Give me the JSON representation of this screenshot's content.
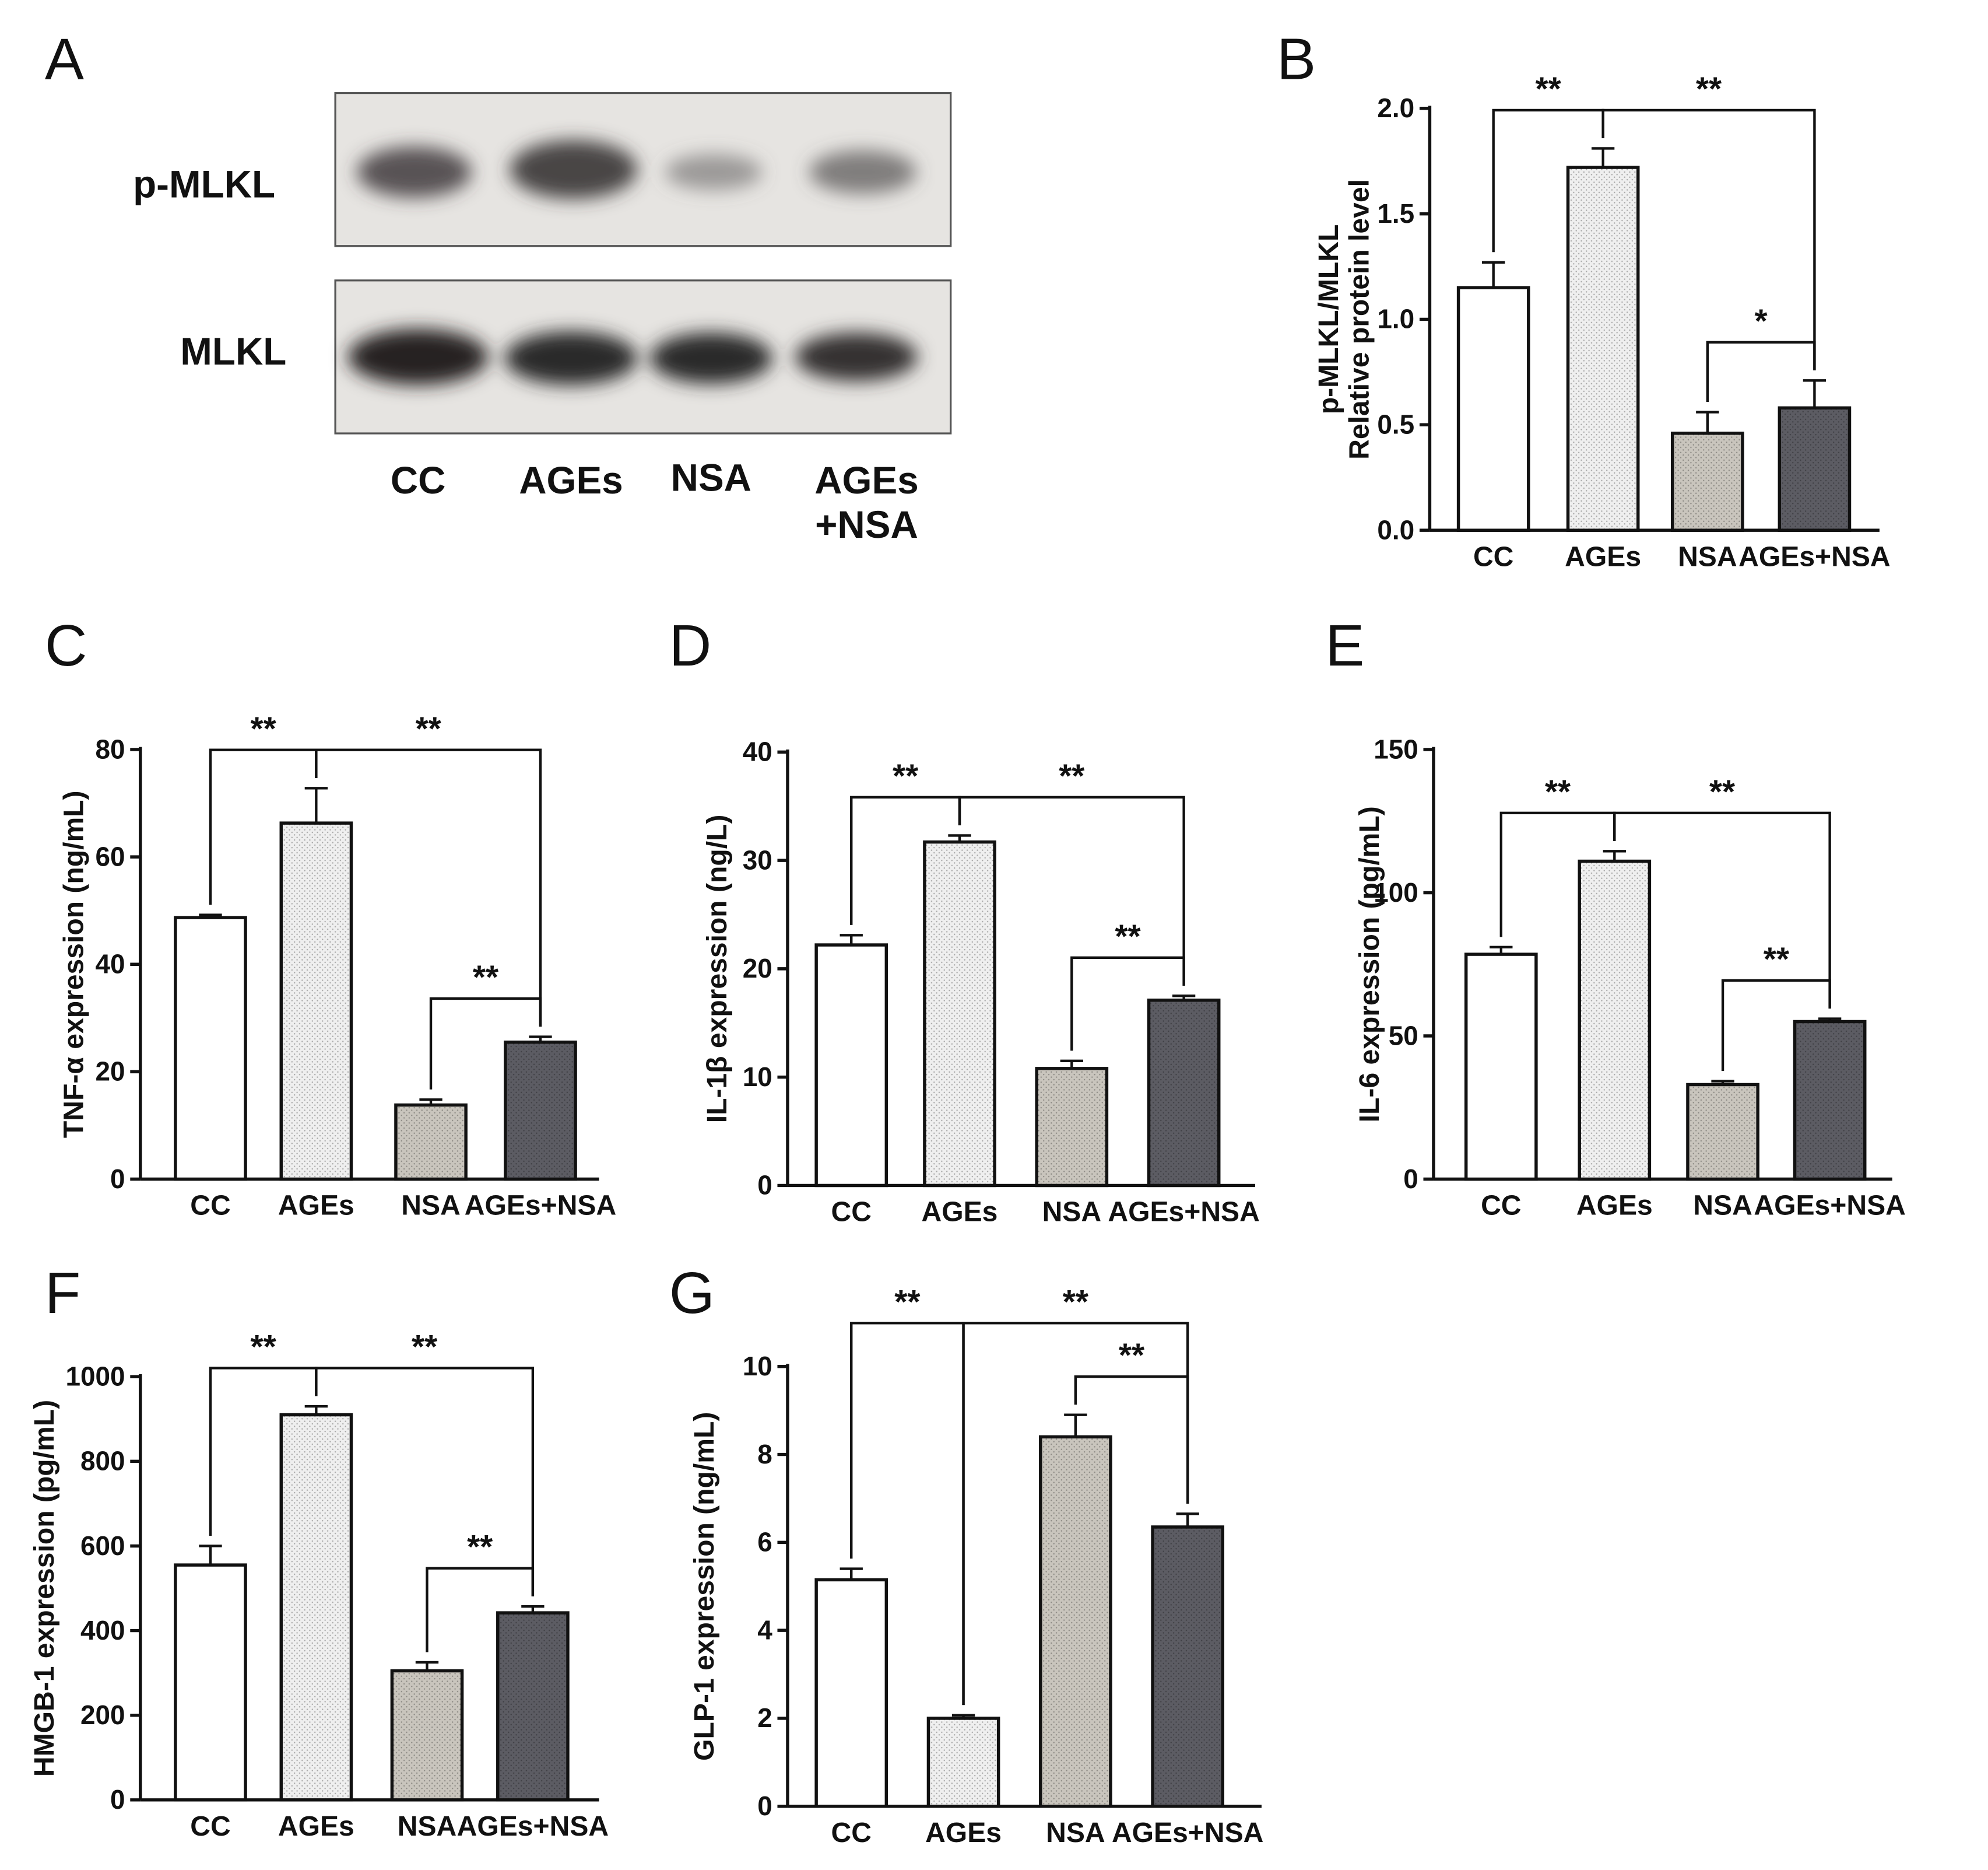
{
  "blot": {
    "label": "A",
    "rows": [
      "p-MLKL",
      "MLKL"
    ],
    "lanes": [
      [
        "CC"
      ],
      [
        "AGEs"
      ],
      [
        "NSA"
      ],
      [
        "AGEs",
        "+NSA"
      ]
    ]
  },
  "chart_data": [
    {
      "type": "bar",
      "label": "B",
      "y_label": [
        "p-MLKL/MLKL",
        "Relative protein level"
      ],
      "categories": [
        "CC",
        "AGEs",
        "NSA",
        "AGEs+NSA"
      ],
      "values": [
        1.15,
        1.72,
        0.46,
        0.58
      ],
      "errors": [
        0.12,
        0.09,
        0.1,
        0.13
      ],
      "colors": [
        "#ffffff",
        "#efefef",
        "#c9c5bd",
        "#5c5c63"
      ],
      "ylim": [
        0,
        2
      ],
      "yticks": [
        {
          "value": 0,
          "label": "0.0"
        },
        0.5,
        {
          "value": 1,
          "label": "1.0"
        },
        1.5,
        {
          "value": 2,
          "label": "2.0"
        }
      ],
      "significance": [
        {
          "from": 0,
          "to": 1,
          "label": "**"
        },
        {
          "from": 1,
          "to": 3,
          "label": "**"
        },
        {
          "from": 2,
          "to": 3,
          "label": "*"
        }
      ]
    },
    {
      "type": "bar",
      "label": "C",
      "y_label": [
        "TNF-α expression (ng/mL)"
      ],
      "categories": [
        "CC",
        "AGEs",
        "NSA",
        "AGEs+NSA"
      ],
      "values": [
        48.7,
        66.3,
        13.8,
        25.5
      ],
      "errors": [
        0.5,
        6.5,
        1,
        1
      ],
      "colors": [
        "#ffffff",
        "#efefef",
        "#c9c5bd",
        "#5c5c63"
      ],
      "ylim": [
        0,
        80
      ],
      "yticks": [
        0,
        20,
        40,
        60,
        80
      ],
      "significance": [
        {
          "from": 0,
          "to": 1,
          "label": "**"
        },
        {
          "from": 1,
          "to": 3,
          "label": "**"
        },
        {
          "from": 2,
          "to": 3,
          "label": "**"
        }
      ]
    },
    {
      "type": "bar",
      "label": "D",
      "y_label": [
        "IL-1β expression (ng/L)"
      ],
      "categories": [
        "CC",
        "AGEs",
        "NSA",
        "AGEs+NSA"
      ],
      "values": [
        22.2,
        31.7,
        10.8,
        17.1
      ],
      "errors": [
        0.9,
        0.6,
        0.7,
        0.4
      ],
      "colors": [
        "#ffffff",
        "#efefef",
        "#c9c5bd",
        "#5c5c63"
      ],
      "ylim": [
        0,
        40
      ],
      "yticks": [
        0,
        10,
        20,
        30,
        40
      ],
      "significance": [
        {
          "from": 0,
          "to": 1,
          "label": "**"
        },
        {
          "from": 1,
          "to": 3,
          "label": "**"
        },
        {
          "from": 2,
          "to": 3,
          "label": "**"
        }
      ]
    },
    {
      "type": "bar",
      "label": "E",
      "y_label": [
        "IL-6 expression (pg/mL)"
      ],
      "categories": [
        "CC",
        "AGEs",
        "NSA",
        "AGEs+NSA"
      ],
      "values": [
        78.5,
        111,
        33,
        55
      ],
      "errors": [
        2.5,
        3.5,
        1.2,
        1
      ],
      "colors": [
        "#ffffff",
        "#efefef",
        "#c9c5bd",
        "#5c5c63"
      ],
      "ylim": [
        0,
        150
      ],
      "yticks": [
        0,
        50,
        100,
        150
      ],
      "significance": [
        {
          "from": 0,
          "to": 1,
          "label": "**"
        },
        {
          "from": 1,
          "to": 3,
          "label": "**"
        },
        {
          "from": 2,
          "to": 3,
          "label": "**"
        }
      ]
    },
    {
      "type": "bar",
      "label": "F",
      "y_label": [
        "HMGB-1 expression (pg/mL)"
      ],
      "categories": [
        "CC",
        "AGEs",
        "NSA",
        "AGEs+NSA"
      ],
      "values": [
        555,
        910,
        305,
        442
      ],
      "errors": [
        45,
        20,
        20,
        15
      ],
      "colors": [
        "#ffffff",
        "#efefef",
        "#c9c5bd",
        "#5c5c63"
      ],
      "ylim": [
        0,
        1000
      ],
      "yticks": [
        0,
        200,
        400,
        600,
        800,
        1000
      ],
      "significance": [
        {
          "from": 0,
          "to": 1,
          "label": "**"
        },
        {
          "from": 1,
          "to": 3,
          "label": "**"
        },
        {
          "from": 2,
          "to": 3,
          "label": "**"
        }
      ]
    },
    {
      "type": "bar",
      "label": "G",
      "y_label": [
        "GLP-1 expression (ng/mL)"
      ],
      "categories": [
        "CC",
        "AGEs",
        "NSA",
        "AGEs+NSA"
      ],
      "values": [
        5.15,
        2,
        8.4,
        6.35
      ],
      "errors": [
        0.25,
        0.07,
        0.5,
        0.3
      ],
      "colors": [
        "#ffffff",
        "#efefef",
        "#c9c5bd",
        "#5c5c63"
      ],
      "ylim": [
        0,
        10
      ],
      "yticks": [
        0,
        2,
        4,
        6,
        8,
        10
      ],
      "significance": [
        {
          "from": 0,
          "to": 1,
          "label": "**"
        },
        {
          "from": 1,
          "to": 3,
          "label": "**"
        },
        {
          "from": 2,
          "to": 3,
          "label": "**"
        }
      ]
    }
  ]
}
